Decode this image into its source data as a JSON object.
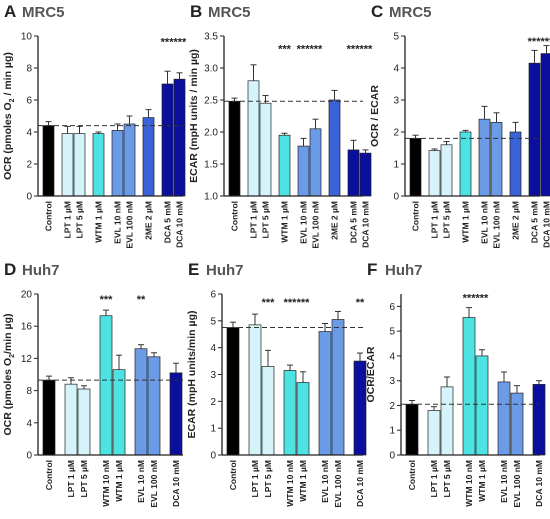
{
  "colors": {
    "black": "#000000",
    "pale_cyan": "#d4f4fa",
    "cyan": "#4ee3e3",
    "blue_light": "#6b9ae6",
    "blue_medium": "#3b63d9",
    "navy": "#0a0f9e",
    "axis": "#222222",
    "error": "#333333"
  },
  "chart_data": [
    {
      "id": "A",
      "type": "bar",
      "panel_letter": "A",
      "title": "MRC5",
      "ylabel_parts": [
        "OCR (pmoles O",
        "2",
        " / min µg)"
      ],
      "ylim": [
        0,
        10
      ],
      "yticks": [
        0,
        2,
        4,
        6,
        8,
        10
      ],
      "ytick_labels": [
        "0",
        "2",
        "4",
        "6",
        "8",
        "10"
      ],
      "reference_line": 4.4,
      "categories": [
        "Control",
        "LPT 1 µM",
        "LPT 5 µM",
        "WTM 1 µM",
        "EVL 10 nM",
        "EVL 100 nM",
        "2ME 2 µM",
        "DCA 5 mM",
        "DCA 10 mM"
      ],
      "groups": [
        [
          0
        ],
        [
          1,
          2
        ],
        [
          3
        ],
        [
          4,
          5
        ],
        [
          6
        ],
        [
          7,
          8
        ]
      ],
      "values": [
        4.4,
        3.9,
        3.9,
        3.9,
        4.1,
        4.5,
        4.9,
        7.0,
        7.3
      ],
      "errors": [
        0.25,
        0.45,
        0.45,
        0.1,
        0.4,
        0.5,
        0.5,
        0.8,
        0.4
      ],
      "bar_colors": [
        "black",
        "pale_cyan",
        "pale_cyan",
        "cyan",
        "blue_light",
        "blue_light",
        "blue_medium",
        "navy",
        "navy"
      ],
      "significance": [
        {
          "label": "******",
          "from": 7,
          "to": 8,
          "y": 9.4
        }
      ]
    },
    {
      "id": "B",
      "type": "bar",
      "panel_letter": "B",
      "title": "MRC5",
      "ylabel_parts": [
        "ECAR (mpH units / min µg)"
      ],
      "ylim": [
        1.0,
        3.5
      ],
      "yticks": [
        1.0,
        1.5,
        2.0,
        2.5,
        3.0,
        3.5
      ],
      "ytick_labels": [
        "1.0",
        "1.5",
        "2.0",
        "2.5",
        "3.0",
        "3.5"
      ],
      "reference_line": 2.48,
      "categories": [
        "Control",
        "LPT 1 µM",
        "LPT 5 µM",
        "WTM 1 µM",
        "EVL 10 nM",
        "EVL 100 nM",
        "2ME 2 µM",
        "DCA 5 mM",
        "DCA 10 mM"
      ],
      "groups": [
        [
          0
        ],
        [
          1,
          2
        ],
        [
          3
        ],
        [
          4,
          5
        ],
        [
          6
        ],
        [
          7,
          8
        ]
      ],
      "values": [
        2.48,
        2.8,
        2.45,
        1.95,
        1.78,
        2.05,
        2.5,
        1.72,
        1.67
      ],
      "errors": [
        0.05,
        0.25,
        0.12,
        0.03,
        0.12,
        0.15,
        0.15,
        0.15,
        0.05
      ],
      "bar_colors": [
        "black",
        "pale_cyan",
        "pale_cyan",
        "cyan",
        "blue_light",
        "blue_light",
        "blue_medium",
        "navy",
        "navy"
      ],
      "significance": [
        {
          "label": "***",
          "from": 3,
          "to": 3,
          "y": 3.24
        },
        {
          "label": "******",
          "from": 4,
          "to": 5,
          "y": 3.24
        },
        {
          "label": "******",
          "from": 7,
          "to": 8,
          "y": 3.24
        }
      ]
    },
    {
      "id": "C",
      "type": "bar",
      "panel_letter": "C",
      "title": "MRC5",
      "ylabel_parts": [
        "OCR / ECAR"
      ],
      "ylim": [
        0,
        5
      ],
      "yticks": [
        0,
        1,
        2,
        3,
        4,
        5
      ],
      "ytick_labels": [
        "0",
        "1",
        "2",
        "3",
        "4",
        "5"
      ],
      "reference_line": 1.8,
      "categories": [
        "Control",
        "LPT 1 µM",
        "LPT 5 µM",
        "WTM 1 µM",
        "EVL 10 nM",
        "EVL 100 nM",
        "2ME 2 µM",
        "DCA 5 mM",
        "DCA 10 mM"
      ],
      "groups": [
        [
          0
        ],
        [
          1,
          2
        ],
        [
          3
        ],
        [
          4,
          5
        ],
        [
          6
        ],
        [
          7,
          8
        ]
      ],
      "values": [
        1.8,
        1.42,
        1.6,
        2.0,
        2.4,
        2.3,
        2.0,
        4.15,
        4.45
      ],
      "errors": [
        0.1,
        0.05,
        0.1,
        0.05,
        0.4,
        0.3,
        0.3,
        0.4,
        0.25
      ],
      "bar_colors": [
        "black",
        "pale_cyan",
        "pale_cyan",
        "cyan",
        "blue_light",
        "blue_light",
        "blue_medium",
        "navy",
        "navy"
      ],
      "significance": [
        {
          "label": "******",
          "from": 7,
          "to": 8,
          "y": 4.72
        }
      ]
    },
    {
      "id": "D",
      "type": "bar",
      "panel_letter": "D",
      "title": "Huh7",
      "ylabel_parts": [
        "OCR (pmoles O",
        "2",
        "/min µg)"
      ],
      "ylim": [
        0,
        20
      ],
      "yticks": [
        0,
        4,
        8,
        12,
        16,
        20
      ],
      "ytick_labels": [
        "0",
        "4",
        "8",
        "12",
        "16",
        "20"
      ],
      "reference_line": 9.3,
      "categories": [
        "Control",
        "LPT 1 µM",
        "LPT 5 µM",
        "WTM 10 nM",
        "WTM 1 µM",
        "EVL 10 nM",
        "EVL 100 nM",
        "DCA 10 mM"
      ],
      "groups": [
        [
          0
        ],
        [
          1,
          2
        ],
        [
          3,
          4
        ],
        [
          5,
          6
        ],
        [
          7
        ]
      ],
      "values": [
        9.3,
        8.8,
        8.2,
        17.3,
        10.6,
        13.2,
        12.2,
        10.2
      ],
      "errors": [
        0.5,
        0.8,
        0.4,
        0.7,
        1.8,
        0.5,
        0.5,
        1.2
      ],
      "bar_colors": [
        "black",
        "pale_cyan",
        "pale_cyan",
        "cyan",
        "cyan",
        "blue_light",
        "blue_light",
        "navy"
      ],
      "significance": [
        {
          "label": "***",
          "from": 3,
          "to": 3,
          "y": 18.9
        },
        {
          "label": "**",
          "from": 5,
          "to": 5,
          "y": 18.9
        }
      ]
    },
    {
      "id": "E",
      "type": "bar",
      "panel_letter": "E",
      "title": "Huh7",
      "ylabel_parts": [
        "ECAR (mpH units/min µg)"
      ],
      "ylim": [
        0,
        6
      ],
      "yticks": [
        0,
        1,
        2,
        3,
        4,
        5,
        6
      ],
      "ytick_labels": [
        "0",
        "1",
        "2",
        "3",
        "4",
        "5",
        "6"
      ],
      "reference_line": 4.75,
      "categories": [
        "Control",
        "LPT 1 µM",
        "LPT 5 µM",
        "WTM 10 nM",
        "WTM 1 µM",
        "EVL 10 nM",
        "EVL 100 nM",
        "DCA 10 mM"
      ],
      "groups": [
        [
          0
        ],
        [
          1,
          2
        ],
        [
          3,
          4
        ],
        [
          5,
          6
        ],
        [
          7
        ]
      ],
      "values": [
        4.75,
        4.85,
        3.3,
        3.15,
        2.7,
        4.6,
        5.05,
        3.5
      ],
      "errors": [
        0.2,
        0.4,
        0.6,
        0.2,
        0.4,
        0.3,
        0.3,
        0.3
      ],
      "bar_colors": [
        "black",
        "pale_cyan",
        "pale_cyan",
        "cyan",
        "cyan",
        "blue_light",
        "blue_light",
        "navy"
      ],
      "significance": [
        {
          "label": "***",
          "from": 2,
          "to": 2,
          "y": 5.55
        },
        {
          "label": "***",
          "from": 3,
          "to": 3,
          "y": 5.55
        },
        {
          "label": "***",
          "from": 4,
          "to": 4,
          "y": 5.55
        },
        {
          "label": "**",
          "from": 7,
          "to": 7,
          "y": 5.55
        }
      ]
    },
    {
      "id": "F",
      "type": "bar",
      "panel_letter": "F",
      "title": "Huh7",
      "ylabel_parts": [
        "OCR/ECAR"
      ],
      "ylim": [
        0,
        6.5
      ],
      "yticks": [
        0,
        1,
        2,
        3,
        4,
        5,
        6
      ],
      "ytick_labels": [
        "0",
        "1",
        "2",
        "3",
        "4",
        "5",
        "6"
      ],
      "reference_line": 2.05,
      "categories": [
        "Control",
        "LPT 1 µM",
        "LPT 5 µM",
        "WTM 10 nM",
        "WTM 1 µM",
        "EVL 10 nM",
        "EVL 100 nM",
        "DCA 10 mM"
      ],
      "groups": [
        [
          0
        ],
        [
          1,
          2
        ],
        [
          3,
          4
        ],
        [
          5,
          6
        ],
        [
          7
        ]
      ],
      "values": [
        2.05,
        1.8,
        2.75,
        5.55,
        4.0,
        2.95,
        2.5,
        2.85
      ],
      "errors": [
        0.15,
        0.15,
        0.4,
        0.4,
        0.25,
        0.4,
        0.3,
        0.15
      ],
      "bar_colors": [
        "black",
        "pale_cyan",
        "pale_cyan",
        "cyan",
        "cyan",
        "blue_light",
        "blue_light",
        "navy"
      ],
      "significance": [
        {
          "label": "******",
          "from": 3,
          "to": 4,
          "y": 6.2
        }
      ]
    }
  ]
}
